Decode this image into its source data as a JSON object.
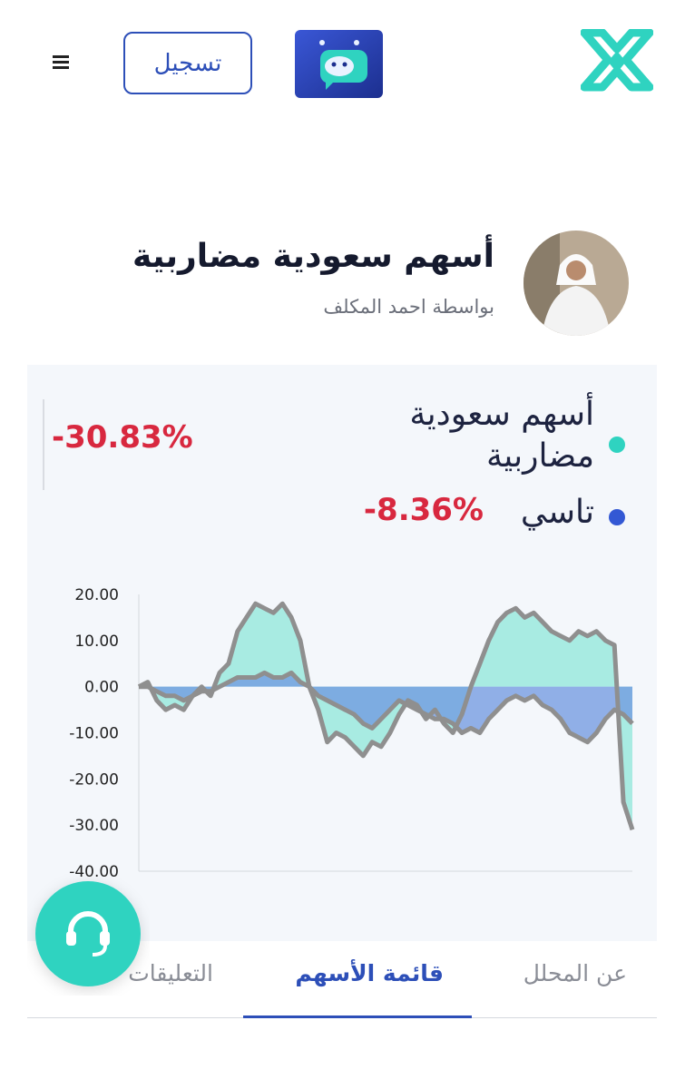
{
  "header": {
    "register_button": "تسجيل"
  },
  "profile": {
    "title": "أسهم سعودية مضاربية",
    "author": "بواسطة احمد المكلف"
  },
  "chart_data": {
    "type": "area",
    "series": [
      {
        "name": "أسهم سعودية مضاربية",
        "color": "#2fd3c0",
        "fill": "#a8ebe2",
        "return": {
          "value": -30.83,
          "label": "-30.83%"
        },
        "values": [
          0,
          1,
          -3,
          -5,
          -4,
          -5,
          -2,
          0,
          -2,
          3,
          5,
          12,
          15,
          18,
          17,
          16,
          18,
          15,
          10,
          0,
          -5,
          -12,
          -10,
          -11,
          -13,
          -15,
          -12,
          -13,
          -10,
          -6,
          -3,
          -4,
          -7,
          -5,
          -8,
          -10,
          -6,
          0,
          5,
          10,
          14,
          16,
          17,
          15,
          16,
          14,
          12,
          11,
          10,
          12,
          11,
          12,
          10,
          9,
          -25,
          -31
        ]
      },
      {
        "name": "تاسي",
        "color": "#3358d4",
        "fill": "#6f97e0",
        "return": {
          "value": -8.36,
          "label": "-8.36%"
        },
        "values": [
          0,
          0,
          -1,
          -2,
          -2,
          -3,
          -2,
          -1,
          -1,
          0,
          1,
          2,
          2,
          2,
          3,
          2,
          2,
          3,
          1,
          0,
          -2,
          -3,
          -4,
          -5,
          -6,
          -8,
          -9,
          -7,
          -5,
          -3,
          -4,
          -5,
          -6,
          -7,
          -7,
          -8,
          -10,
          -9,
          -10,
          -7,
          -5,
          -3,
          -2,
          -3,
          -2,
          -4,
          -5,
          -7,
          -10,
          -11,
          -12,
          -10,
          -7,
          -5,
          -6,
          -8
        ]
      }
    ],
    "ylim": [
      -40,
      20
    ],
    "yticks": [
      {
        "value": -40,
        "label": "-40.00"
      },
      {
        "value": -30,
        "label": "-30.00"
      },
      {
        "value": -20,
        "label": "-20.00"
      },
      {
        "value": -10,
        "label": "-10.00"
      },
      {
        "value": 0,
        "label": "0.00"
      },
      {
        "value": 10,
        "label": "10.00"
      },
      {
        "value": 20,
        "label": "20.00"
      }
    ]
  },
  "tabs": [
    "عن المحلل",
    "قائمة الأسهم",
    "التعليقات"
  ]
}
